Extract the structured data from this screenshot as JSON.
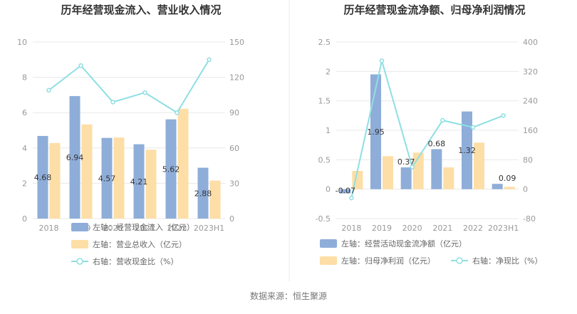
{
  "source": "数据来源：恒生聚源",
  "colors": {
    "bar_primary": "#8eadd9",
    "bar_secondary": "#fddea6",
    "line": "#8fdfe3",
    "grid": "#e8e8e8",
    "divider": "#eeeeee"
  },
  "chart_data": [
    {
      "type": "bar",
      "title": "历年经营现金流入、营业收入情况",
      "categories": [
        "2018",
        "2019",
        "2020",
        "2021",
        "2022",
        "2023H1"
      ],
      "left_axis": {
        "ticks": [
          "0",
          "2",
          "4",
          "6",
          "8",
          "10"
        ],
        "ylim": [
          0,
          10
        ]
      },
      "right_axis": {
        "ticks": [
          "0",
          "30",
          "60",
          "90",
          "120",
          "150"
        ],
        "ylim": [
          0,
          150
        ]
      },
      "series": [
        {
          "name": "左轴：经营现金流入（亿元）",
          "kind": "bar",
          "axis": "left",
          "values": [
            4.68,
            6.94,
            4.57,
            4.21,
            5.62,
            2.88
          ],
          "labels": [
            "4.68",
            "6.94",
            "4.57",
            "4.21",
            "5.62",
            "2.88"
          ]
        },
        {
          "name": "左轴：营业总收入（亿元）",
          "kind": "bar",
          "axis": "left",
          "values": [
            4.28,
            5.33,
            4.59,
            3.9,
            6.22,
            2.15
          ]
        },
        {
          "name": "右轴：营收现金比（%）",
          "kind": "line",
          "axis": "right",
          "values": [
            109,
            130,
            99,
            107,
            90,
            135
          ]
        }
      ],
      "legend_position": "bottom"
    },
    {
      "type": "bar",
      "title": "历年经营现金流净额、归母净利润情况",
      "categories": [
        "2018",
        "2019",
        "2020",
        "2021",
        "2022",
        "2023H1"
      ],
      "left_axis": {
        "ticks": [
          "-0.5",
          "0",
          "0.5",
          "1",
          "1.5",
          "2",
          "2.5"
        ],
        "ylim": [
          -0.5,
          2.5
        ]
      },
      "right_axis": {
        "ticks": [
          "-80",
          "0",
          "80",
          "160",
          "240",
          "320",
          "400"
        ],
        "ylim": [
          -80,
          400
        ]
      },
      "series": [
        {
          "name": "左轴：经营活动现金流净额（亿元）",
          "kind": "bar",
          "axis": "left",
          "values": [
            -0.07,
            1.95,
            0.37,
            0.68,
            1.32,
            0.09
          ],
          "labels": [
            "-0.07",
            "1.95",
            "0.37",
            "0.68",
            "1.32",
            "0.09"
          ]
        },
        {
          "name": "左轴：归母净利润（亿元）",
          "kind": "bar",
          "axis": "left",
          "values": [
            0.31,
            0.56,
            0.62,
            0.37,
            0.79,
            0.04
          ]
        },
        {
          "name": "右轴：净现比（%）",
          "kind": "line",
          "axis": "right",
          "values": [
            -24,
            349,
            60,
            187,
            168,
            200
          ]
        }
      ],
      "legend_position": "bottom"
    }
  ]
}
